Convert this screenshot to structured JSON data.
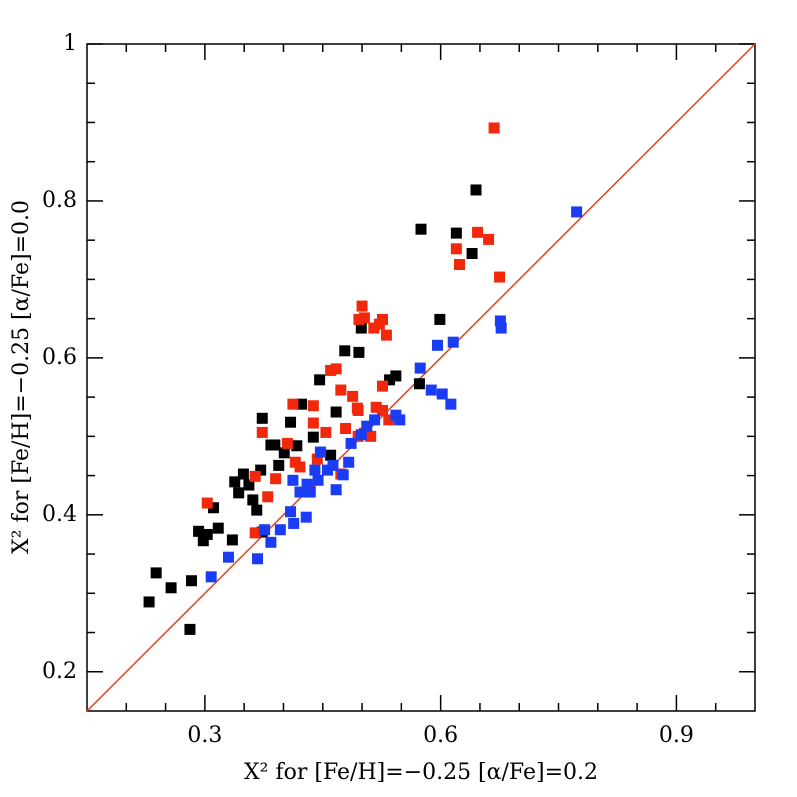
{
  "chart_data": {
    "type": "scatter",
    "xlabel": "X² for [Fe/H]=−0.25 [α/Fe]=0.2",
    "ylabel": "X² for [Fe/H]=−0.25 [α/Fe]=0.0",
    "xlim": [
      0.15,
      1.0
    ],
    "ylim": [
      0.15,
      1.0
    ],
    "xticks": [
      0.3,
      0.6,
      0.9
    ],
    "yticks": [
      0.2,
      0.4,
      0.6,
      0.8,
      1
    ],
    "minor_xticks": [
      0.2,
      0.25,
      0.35,
      0.4,
      0.45,
      0.5,
      0.55,
      0.65,
      0.7,
      0.75,
      0.8,
      0.85,
      0.95
    ],
    "minor_yticks": [
      0.25,
      0.3,
      0.35,
      0.45,
      0.5,
      0.55,
      0.65,
      0.7,
      0.75,
      0.85,
      0.9,
      0.95
    ],
    "reference_line": {
      "slope": 1,
      "intercept": 0,
      "color": "#e8401c"
    },
    "series": [
      {
        "color": "#000000",
        "x": [
          0.229,
          0.238,
          0.257,
          0.283,
          0.281,
          0.292,
          0.298,
          0.303,
          0.311,
          0.317,
          0.335,
          0.338,
          0.343,
          0.349,
          0.356,
          0.361,
          0.366,
          0.371,
          0.373,
          0.384,
          0.389,
          0.394,
          0.401,
          0.409,
          0.417,
          0.423,
          0.438,
          0.446,
          0.467,
          0.478,
          0.496,
          0.499,
          0.535,
          0.543,
          0.573,
          0.575,
          0.599,
          0.62,
          0.64,
          0.645,
          0.373,
          0.46
        ],
        "y": [
          0.289,
          0.326,
          0.307,
          0.316,
          0.254,
          0.379,
          0.367,
          0.375,
          0.409,
          0.383,
          0.368,
          0.442,
          0.428,
          0.452,
          0.438,
          0.419,
          0.406,
          0.457,
          0.523,
          0.489,
          0.489,
          0.463,
          0.479,
          0.518,
          0.488,
          0.541,
          0.499,
          0.572,
          0.531,
          0.609,
          0.607,
          0.638,
          0.572,
          0.577,
          0.567,
          0.764,
          0.649,
          0.759,
          0.733,
          0.814,
          0.378,
          0.476
        ]
      },
      {
        "color": "#f2280c",
        "x": [
          0.303,
          0.364,
          0.364,
          0.373,
          0.38,
          0.39,
          0.405,
          0.412,
          0.415,
          0.421,
          0.434,
          0.438,
          0.438,
          0.443,
          0.454,
          0.46,
          0.467,
          0.473,
          0.473,
          0.479,
          0.488,
          0.494,
          0.495,
          0.495,
          0.5,
          0.503,
          0.496,
          0.503,
          0.511,
          0.515,
          0.522,
          0.526,
          0.531,
          0.526,
          0.526,
          0.534,
          0.518,
          0.62,
          0.624,
          0.647,
          0.661,
          0.675,
          0.668
        ],
        "y": [
          0.415,
          0.449,
          0.377,
          0.505,
          0.423,
          0.446,
          0.491,
          0.541,
          0.467,
          0.461,
          0.432,
          0.517,
          0.539,
          0.471,
          0.505,
          0.584,
          0.586,
          0.559,
          0.452,
          0.51,
          0.551,
          0.536,
          0.5,
          0.533,
          0.666,
          0.504,
          0.649,
          0.651,
          0.5,
          0.638,
          0.643,
          0.649,
          0.629,
          0.533,
          0.564,
          0.521,
          0.537,
          0.739,
          0.719,
          0.76,
          0.751,
          0.703,
          0.893
        ]
      },
      {
        "color": "#1a3cf5",
        "x": [
          0.308,
          0.33,
          0.367,
          0.376,
          0.384,
          0.396,
          0.409,
          0.413,
          0.412,
          0.421,
          0.43,
          0.429,
          0.434,
          0.44,
          0.447,
          0.456,
          0.463,
          0.467,
          0.483,
          0.486,
          0.499,
          0.506,
          0.516,
          0.543,
          0.548,
          0.574,
          0.588,
          0.596,
          0.602,
          0.613,
          0.616,
          0.676,
          0.677,
          0.773,
          0.476,
          0.444
        ],
        "y": [
          0.321,
          0.346,
          0.344,
          0.381,
          0.365,
          0.381,
          0.404,
          0.389,
          0.444,
          0.429,
          0.439,
          0.397,
          0.429,
          0.457,
          0.48,
          0.457,
          0.463,
          0.432,
          0.467,
          0.491,
          0.502,
          0.513,
          0.521,
          0.527,
          0.521,
          0.587,
          0.559,
          0.616,
          0.554,
          0.541,
          0.62,
          0.647,
          0.638,
          0.786,
          0.451,
          0.444
        ]
      }
    ]
  }
}
